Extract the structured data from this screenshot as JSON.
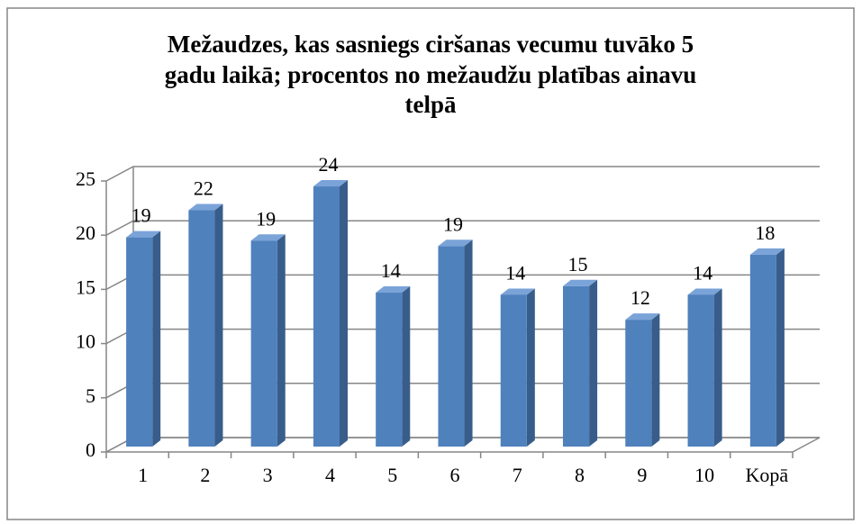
{
  "chart_data": {
    "type": "bar3d",
    "title": [
      "Mežaudzes, kas sasniegs ciršanas vecumu tuvāko 5",
      "gadu laikā; procentos no mežaudžu platības ainavu",
      "telpā"
    ],
    "categories": [
      "1",
      "2",
      "3",
      "4",
      "5",
      "6",
      "7",
      "8",
      "9",
      "10",
      "Kopā"
    ],
    "values": [
      19.3,
      21.8,
      19.0,
      24.0,
      14.2,
      18.5,
      14.0,
      14.8,
      11.7,
      14.0,
      17.7
    ],
    "value_labels": [
      "19",
      "22",
      "19",
      "24",
      "14",
      "19",
      "14",
      "15",
      "12",
      "14",
      "18"
    ],
    "color": "#4f81bd",
    "ylim": [
      0,
      25
    ],
    "yticks": [
      0,
      5,
      10,
      15,
      20,
      25
    ],
    "grid": true
  }
}
